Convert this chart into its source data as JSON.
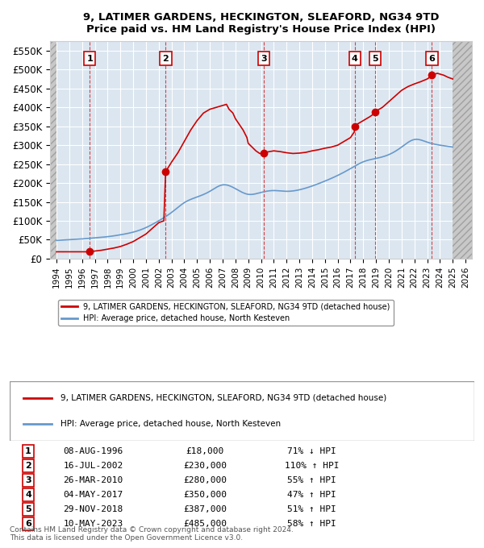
{
  "title": "9, LATIMER GARDENS, HECKINGTON, SLEAFORD, NG34 9TD",
  "subtitle": "Price paid vs. HM Land Registry's House Price Index (HPI)",
  "xlim": [
    1993.5,
    2026.5
  ],
  "ylim": [
    0,
    575000
  ],
  "yticks": [
    0,
    50000,
    100000,
    150000,
    200000,
    250000,
    300000,
    350000,
    400000,
    450000,
    500000,
    550000
  ],
  "ytick_labels": [
    "£0",
    "£50K",
    "£100K",
    "£150K",
    "£200K",
    "£250K",
    "£300K",
    "£350K",
    "£400K",
    "£450K",
    "£500K",
    "£550K"
  ],
  "sale_dates_decimal": [
    1996.6,
    2002.54,
    2010.23,
    2017.34,
    2018.91,
    2023.36
  ],
  "sale_prices": [
    18000,
    230000,
    280000,
    350000,
    387000,
    485000
  ],
  "sale_labels": [
    "1",
    "2",
    "3",
    "4",
    "5",
    "6"
  ],
  "sale_date_strings": [
    "08-AUG-1996",
    "16-JUL-2002",
    "26-MAR-2010",
    "04-MAY-2017",
    "29-NOV-2018",
    "10-MAY-2023"
  ],
  "sale_hpi_pct": [
    "71% ↓ HPI",
    "110% ↑ HPI",
    "55% ↑ HPI",
    "47% ↑ HPI",
    "51% ↑ HPI",
    "58% ↑ HPI"
  ],
  "sale_price_strings": [
    "£18,000",
    "£230,000",
    "£280,000",
    "£350,000",
    "£387,000",
    "£485,000"
  ],
  "red_line_color": "#cc0000",
  "blue_line_color": "#6699cc",
  "sale_dot_color": "#cc0000",
  "background_hatch_color": "#d0d0d0",
  "grid_color": "#ffffff",
  "plot_bg_color": "#dce6f0",
  "legend_label_red": "9, LATIMER GARDENS, HECKINGTON, SLEAFORD, NG34 9TD (detached house)",
  "legend_label_blue": "HPI: Average price, detached house, North Kesteven",
  "footer_text": "Contains HM Land Registry data © Crown copyright and database right 2024.\nThis data is licensed under the Open Government Licence v3.0.",
  "hpi_years": [
    1994,
    1995,
    1996,
    1997,
    1998,
    1999,
    2000,
    2001,
    2002,
    2003,
    2004,
    2005,
    2006,
    2007,
    2008,
    2009,
    2010,
    2011,
    2012,
    2013,
    2014,
    2015,
    2016,
    2017,
    2018,
    2019,
    2020,
    2021,
    2022,
    2023,
    2024,
    2025
  ],
  "hpi_values": [
    48000,
    50000,
    52000,
    55000,
    58000,
    63000,
    70000,
    82000,
    100000,
    122000,
    148000,
    163000,
    178000,
    195000,
    185000,
    170000,
    175000,
    180000,
    178000,
    182000,
    192000,
    205000,
    220000,
    238000,
    256000,
    265000,
    275000,
    295000,
    315000,
    308000,
    300000,
    295000
  ]
}
